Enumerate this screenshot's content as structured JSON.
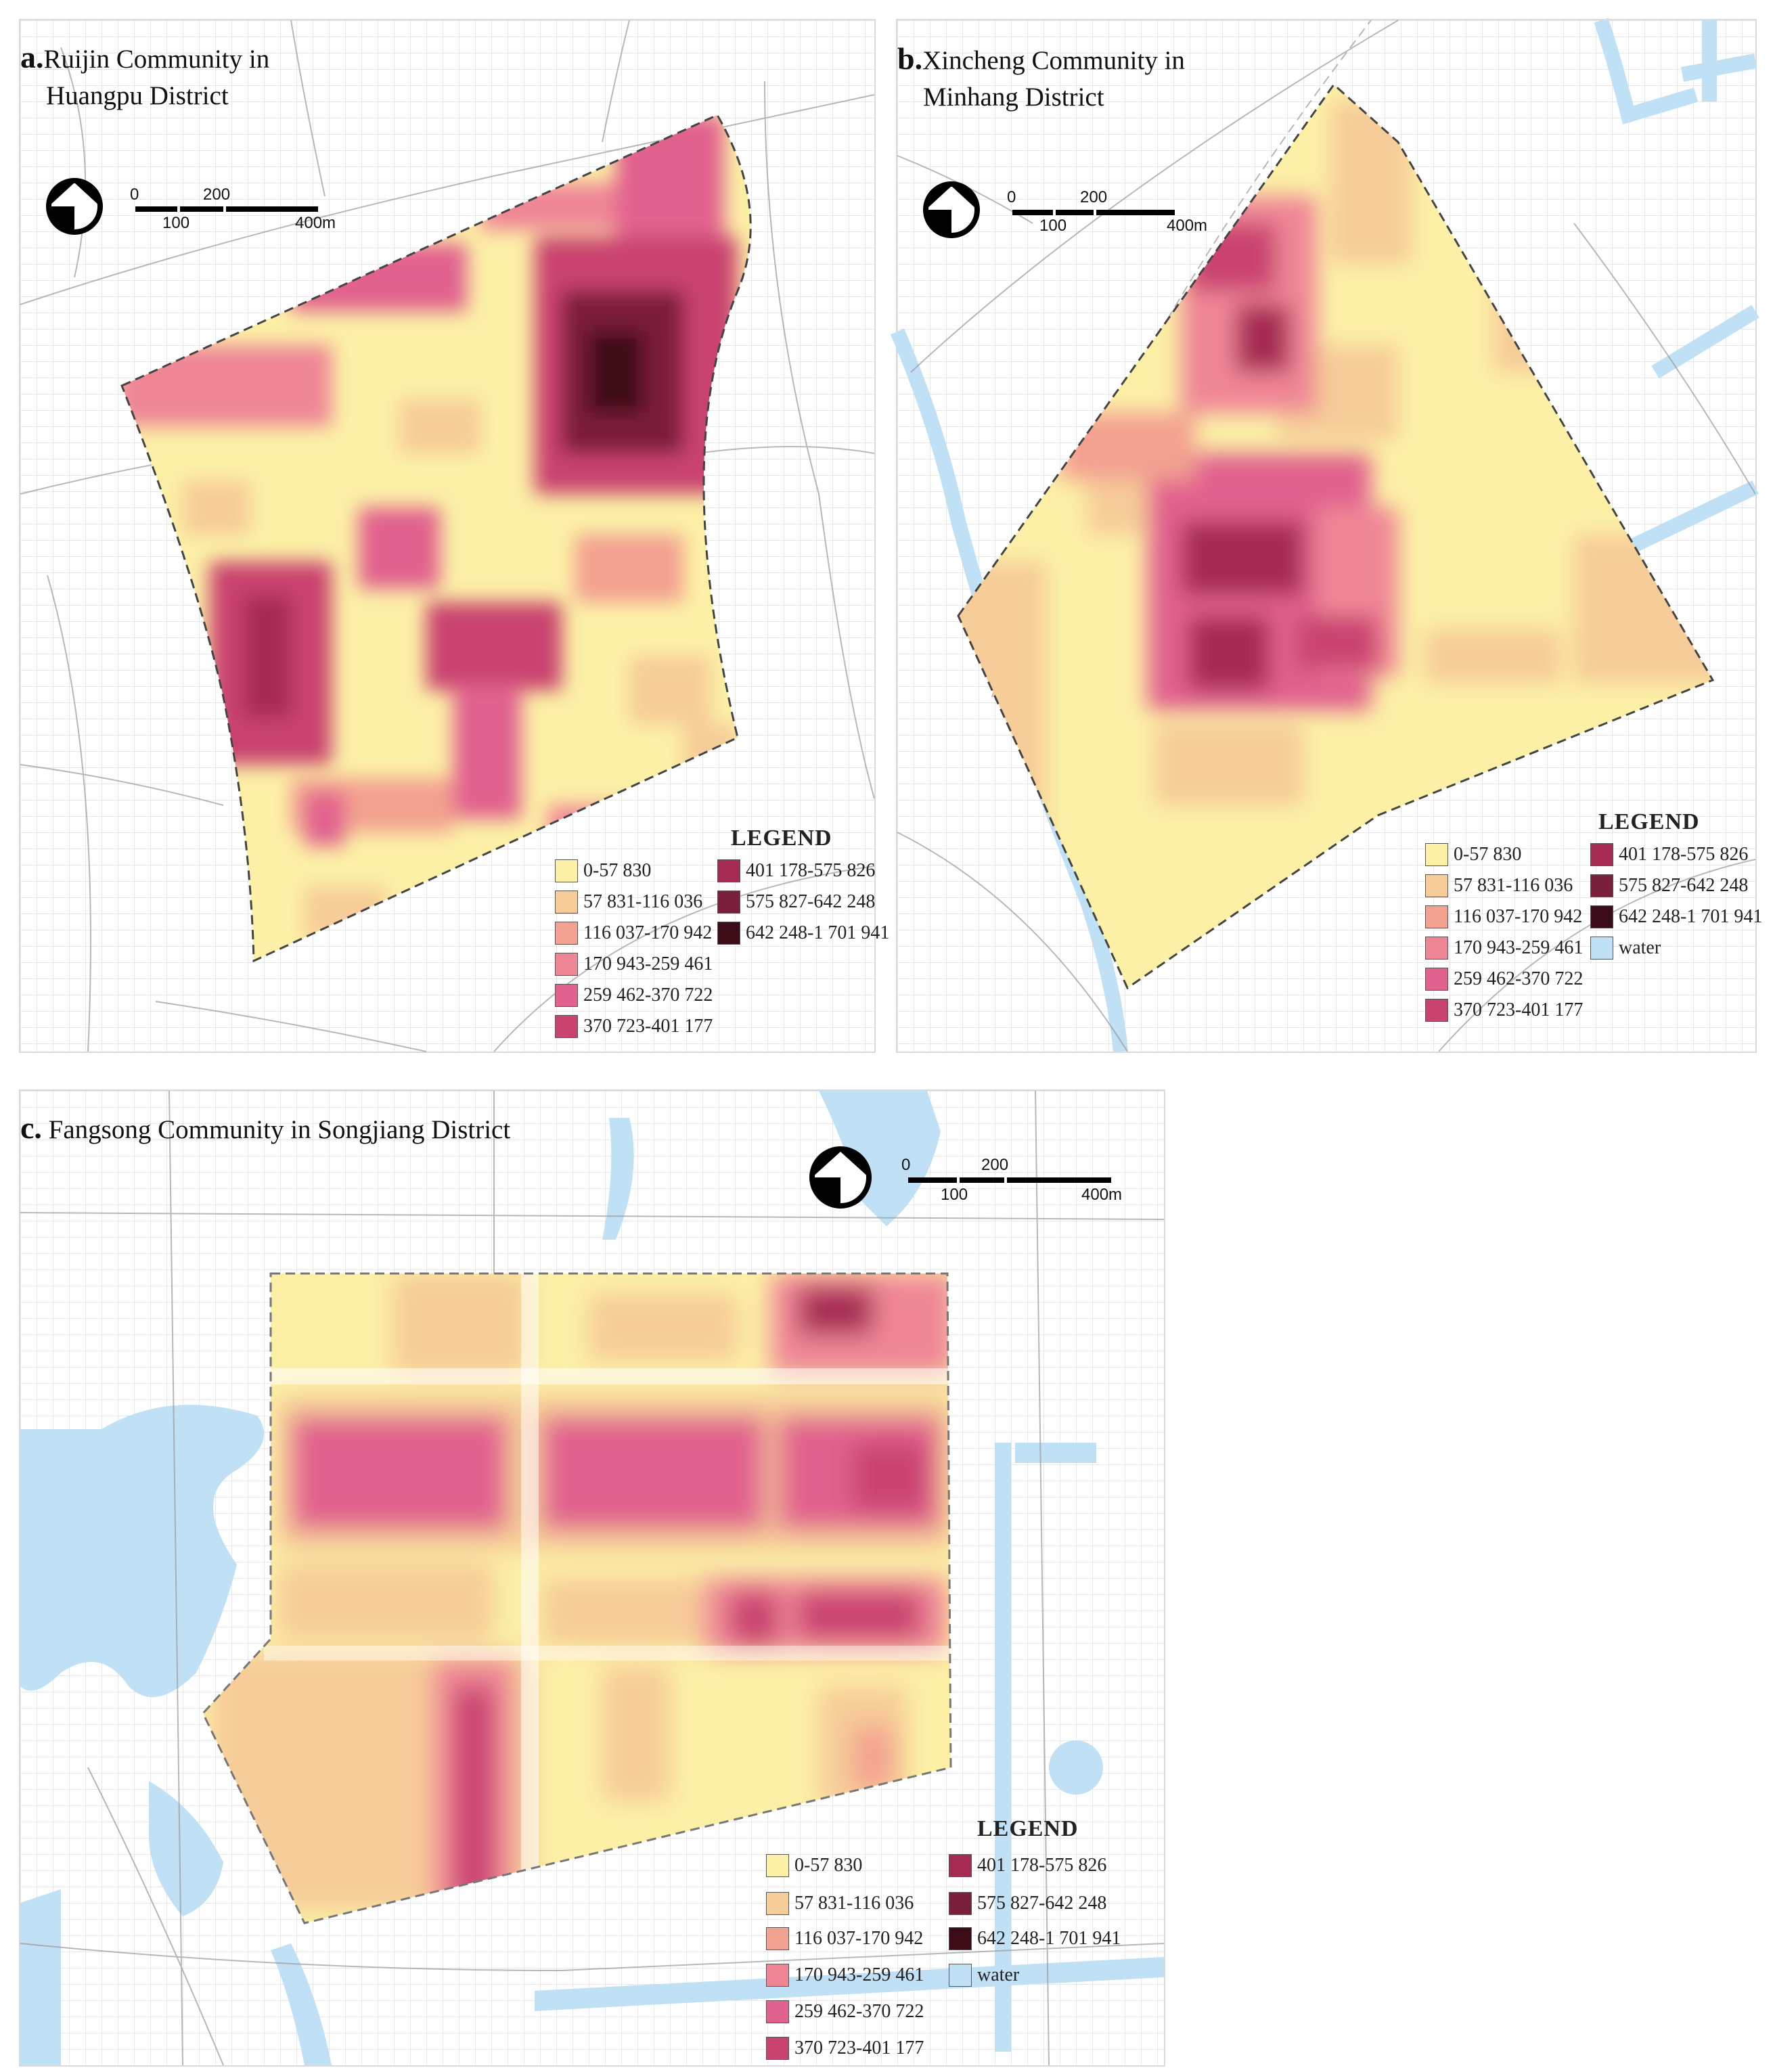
{
  "panels": {
    "a": {
      "letter": "a.",
      "title_line1": "Ruijin Community in",
      "title_line2": "Huangpu District",
      "legend_title": "LEGEND",
      "legend": [
        {
          "label": "0-57 830",
          "color": "#fcf0a6"
        },
        {
          "label": "57 831-116 036",
          "color": "#f6cc98"
        },
        {
          "label": "116 037-170 942",
          "color": "#f3a190"
        },
        {
          "label": "170 943-259 461",
          "color": "#ef8696"
        },
        {
          "label": "259 462-370 722",
          "color": "#e1628e"
        },
        {
          "label": "370 723-401 177",
          "color": "#c9436f"
        },
        {
          "label": "401 178-575 826",
          "color": "#a52b52"
        },
        {
          "label": "575 827-642 248",
          "color": "#7a1f39"
        },
        {
          "label": "642 248-1 701 941",
          "color": "#3d0d17"
        }
      ],
      "scale": {
        "t0": "0",
        "t100": "100",
        "t200": "200",
        "t400": "400m"
      }
    },
    "b": {
      "letter": "b.",
      "title_line1": "Xincheng Community in",
      "title_line2": "Minhang District",
      "legend_title": "LEGEND",
      "legend": [
        {
          "label": "0-57 830",
          "color": "#fcf0a6"
        },
        {
          "label": "57 831-116 036",
          "color": "#f6cc98"
        },
        {
          "label": "116 037-170 942",
          "color": "#f3a190"
        },
        {
          "label": "170 943-259 461",
          "color": "#ef8696"
        },
        {
          "label": "259 462-370 722",
          "color": "#e1628e"
        },
        {
          "label": "370 723-401 177",
          "color": "#c9436f"
        },
        {
          "label": "401 178-575 826",
          "color": "#a52b52"
        },
        {
          "label": "575 827-642 248",
          "color": "#7a1f39"
        },
        {
          "label": "642 248-1 701 941",
          "color": "#3d0d17"
        },
        {
          "label": "water",
          "color": "#bfe0f5"
        }
      ],
      "scale": {
        "t0": "0",
        "t100": "100",
        "t200": "200",
        "t400": "400m"
      }
    },
    "c": {
      "letter": "c.",
      "title_line1": "Fangsong Community in Songjiang District",
      "legend_title": "LEGEND",
      "legend": [
        {
          "label": "0-57 830",
          "color": "#fcf0a6"
        },
        {
          "label": "57 831-116 036",
          "color": "#f6cc98"
        },
        {
          "label": "116 037-170 942",
          "color": "#f3a190"
        },
        {
          "label": "170 943-259 461",
          "color": "#ef8696"
        },
        {
          "label": "259 462-370 722",
          "color": "#e1628e"
        },
        {
          "label": "370 723-401 177",
          "color": "#c9436f"
        },
        {
          "label": "401 178-575 826",
          "color": "#a52b52"
        },
        {
          "label": "575 827-642 248",
          "color": "#7a1f39"
        },
        {
          "label": "642 248-1 701 941",
          "color": "#3d0d17"
        },
        {
          "label": "water",
          "color": "#bfe0f5"
        }
      ],
      "scale": {
        "t0": "0",
        "t100": "100",
        "t200": "200",
        "t400": "400m"
      }
    }
  }
}
